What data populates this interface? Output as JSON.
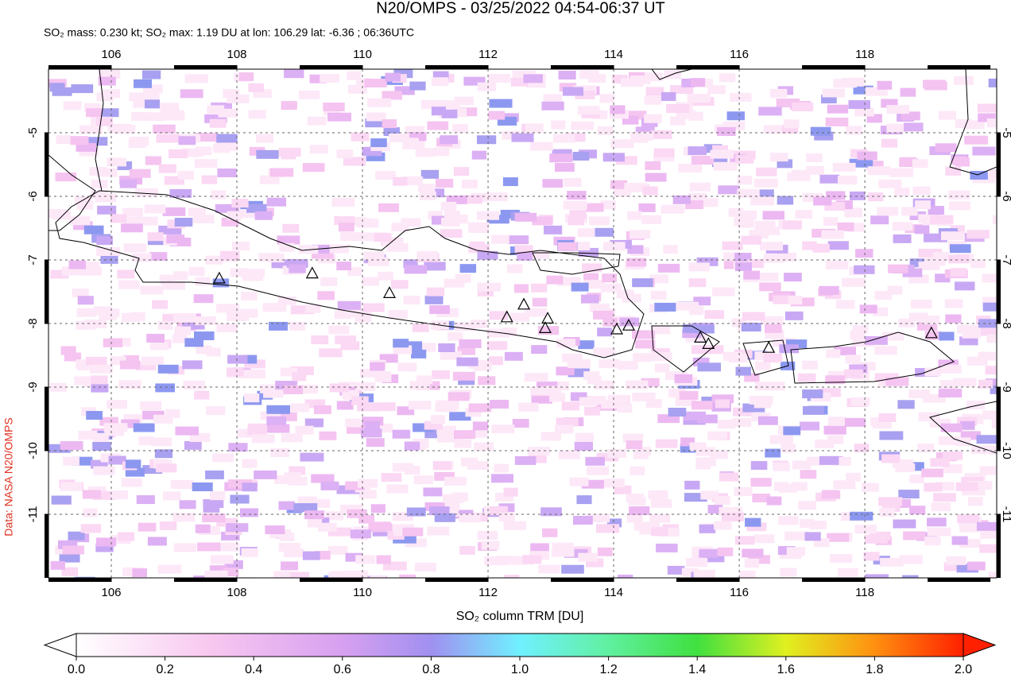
{
  "title": "N20/OMPS - 03/25/2022 04:54-06:37 UT",
  "subtitle": "SO₂ mass: 0.230 kt; SO₂ max: 1.19 DU at lon: 106.29 lat: -6.36 ; 06:36UTC",
  "side_label": "Data: NASA N20/OMPS",
  "map": {
    "xlim": [
      105,
      120.1
    ],
    "ylim": [
      -12,
      -4
    ],
    "xticks": [
      106,
      108,
      110,
      112,
      114,
      116,
      118
    ],
    "yticks": [
      -5,
      -6,
      -7,
      -8,
      -9,
      -10,
      -11
    ],
    "volcanoes": [
      {
        "lon": 107.72,
        "lat": -7.3
      },
      {
        "lon": 109.2,
        "lat": -7.22
      },
      {
        "lon": 110.43,
        "lat": -7.53
      },
      {
        "lon": 112.3,
        "lat": -7.91
      },
      {
        "lon": 112.57,
        "lat": -7.71
      },
      {
        "lon": 112.95,
        "lat": -7.93
      },
      {
        "lon": 112.91,
        "lat": -8.08
      },
      {
        "lon": 114.05,
        "lat": -8.1
      },
      {
        "lon": 114.24,
        "lat": -8.04
      },
      {
        "lon": 115.38,
        "lat": -8.23
      },
      {
        "lon": 115.51,
        "lat": -8.33
      },
      {
        "lon": 116.47,
        "lat": -8.39
      },
      {
        "lon": 119.06,
        "lat": -8.16
      }
    ]
  },
  "colorbar": {
    "label": "SO₂ column TRM [DU]",
    "clim": [
      0,
      2
    ],
    "ticks": [
      {
        "value": 0,
        "label": "0.0"
      },
      {
        "value": 0.2,
        "label": "0.2"
      },
      {
        "value": 0.4,
        "label": "0.4"
      },
      {
        "value": 0.6,
        "label": "0.6"
      },
      {
        "value": 0.8,
        "label": "0.8"
      },
      {
        "value": 1,
        "label": "1.0"
      },
      {
        "value": 1.2,
        "label": "1.2"
      },
      {
        "value": 1.4,
        "label": "1.4"
      },
      {
        "value": 1.6,
        "label": "1.6"
      },
      {
        "value": 1.8,
        "label": "1.8"
      },
      {
        "value": 2,
        "label": "2.0"
      }
    ]
  }
}
